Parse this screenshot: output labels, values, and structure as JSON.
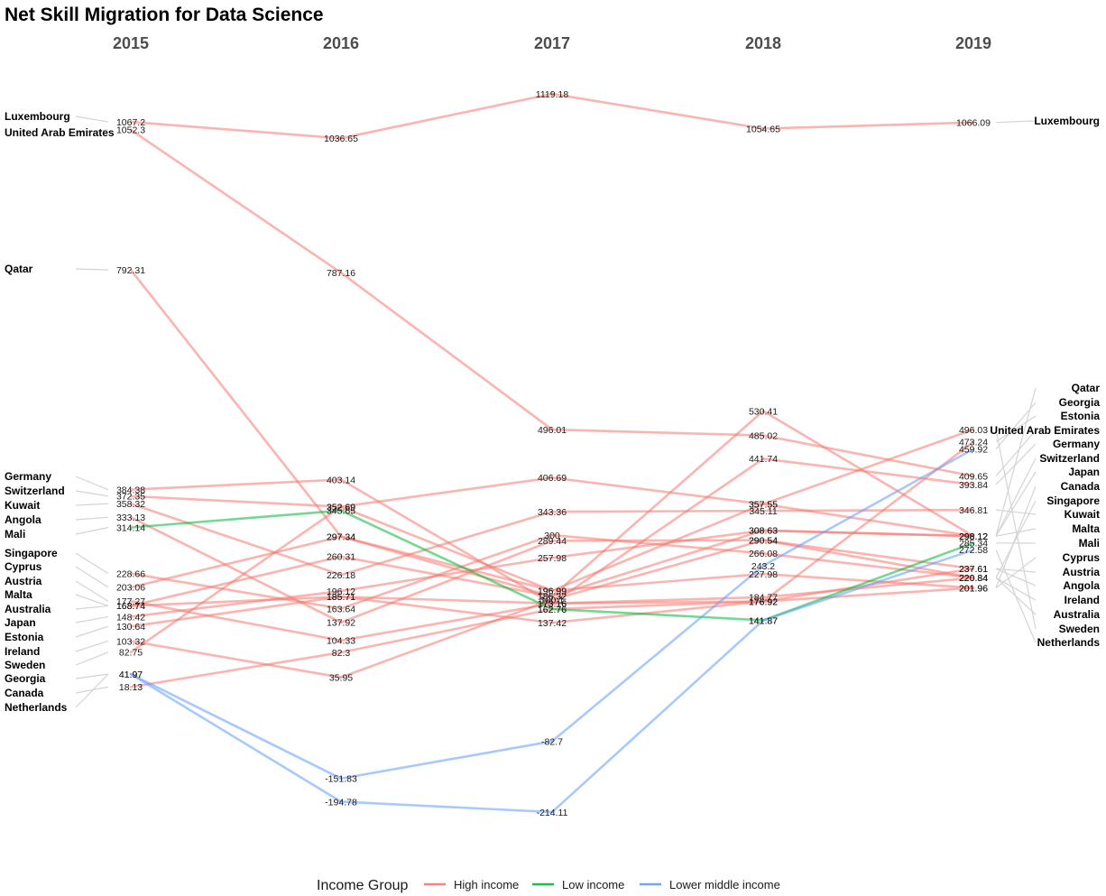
{
  "chart_data": {
    "type": "line",
    "title": "Net Skill Migration for Data Science",
    "x": [
      "2015",
      "2016",
      "2017",
      "2018",
      "2019"
    ],
    "ylim": [
      -245,
      1150
    ],
    "grid": false,
    "legend_position": "bottom",
    "legend": {
      "title": "Income Group",
      "entries": [
        {
          "name": "High income",
          "color": "#F8766D"
        },
        {
          "name": "Low income",
          "color": "#00BA38"
        },
        {
          "name": "Lower middle income",
          "color": "#619CFF"
        }
      ]
    },
    "series": [
      {
        "name": "Luxembourg",
        "group": "High income",
        "values": [
          1067.2,
          1036.65,
          1119.18,
          1054.65,
          1066.09
        ],
        "labels": [
          "1067.2",
          "1036.65",
          "1119.18",
          "1054.65",
          "1066.09"
        ]
      },
      {
        "name": "United Arab Emirates",
        "group": "High income",
        "values": [
          1052.3,
          787.16,
          496.01,
          485.02,
          409.65
        ],
        "labels": [
          "1052.3",
          "787.16",
          "496.01",
          "485.02",
          "409.65"
        ]
      },
      {
        "name": "Qatar",
        "group": "High income",
        "values": [
          792.31,
          297.34,
          186.32,
          530.41,
          298.12
        ],
        "labels": [
          "792.31",
          "297.34",
          "186.32",
          "530.41",
          "298.12"
        ]
      },
      {
        "name": "Germany",
        "group": "High income",
        "values": [
          384.38,
          403.14,
          173.16,
          441.74,
          393.84
        ],
        "labels": [
          "384.38",
          "403.14",
          "173.16",
          "441.74",
          "393.84"
        ]
      },
      {
        "name": "Switzerland",
        "group": "High income",
        "values": [
          372.35,
          352.69,
          406.69,
          357.55,
          298.12
        ],
        "labels": [
          "372.35",
          "352.69",
          "406.69",
          "357.55",
          "298.12"
        ]
      },
      {
        "name": "Kuwait",
        "group": "High income",
        "values": [
          358.32,
          226.18,
          343.36,
          345.11,
          346.81
        ],
        "labels": [
          "358.32",
          "226.18",
          "343.36",
          "345.11",
          "346.81"
        ]
      },
      {
        "name": "Angola",
        "group": "High income",
        "values": [
          333.13,
          137.92,
          289.44,
          290.54,
          237.61
        ],
        "labels": [
          "333.13",
          "137.92",
          "289.44",
          "290.54",
          "237.61"
        ]
      },
      {
        "name": "Mali",
        "group": "Low income",
        "values": [
          314.14,
          345.65,
          162.76,
          141.87,
          285.34
        ],
        "labels": [
          "314.14",
          "345.65",
          "162.76",
          "141.87",
          "285.34"
        ]
      },
      {
        "name": "Singapore",
        "group": "High income",
        "values": [
          228.66,
          163.64,
          300,
          266.08,
          220.84
        ],
        "labels": [
          "228.66",
          "163.64",
          "300",
          "266.08",
          "220.84"
        ]
      },
      {
        "name": "Cyprus",
        "group": "High income",
        "values": [
          203.06,
          297.34,
          196.99,
          227.98,
          201.96
        ],
        "labels": [
          "203.06",
          "297.34",
          "196.99",
          "227.98",
          "201.96"
        ]
      },
      {
        "name": "Austria",
        "group": "High income",
        "values": [
          177.27,
          104.33,
          173.16,
          176.92,
          237.61
        ],
        "labels": [
          "177.27",
          "104.33",
          "173.16",
          "176.92",
          "237.61"
        ]
      },
      {
        "name": "Malta",
        "group": "High income",
        "values": [
          168.74,
          260.31,
          186.32,
          308.63,
          298.12
        ],
        "labels": [
          "168.74",
          "260.31",
          "186.32",
          "308.63",
          "298.12"
        ]
      },
      {
        "name": "Australia",
        "group": "High income",
        "values": [
          168.74,
          185.71,
          173.16,
          184.77,
          220.84
        ],
        "labels": [
          "168.74",
          "185.71",
          "173.16",
          "184.77",
          "220.84"
        ]
      },
      {
        "name": "Japan",
        "group": "High income",
        "values": [
          148.42,
          196.12,
          257.98,
          308.63,
          298.12
        ],
        "labels": [
          "148.42",
          "196.12",
          "257.98",
          "308.63",
          "298.12"
        ]
      },
      {
        "name": "Estonia",
        "group": "High income",
        "values": [
          130.64,
          185.71,
          137.42,
          176.92,
          473.24
        ],
        "labels": [
          "130.64",
          "185.71",
          "137.42",
          "176.92",
          "473.24"
        ]
      },
      {
        "name": "Ireland",
        "group": "High income",
        "values": [
          103.32,
          35.95,
          180.1,
          290.54,
          220.84
        ],
        "labels": [
          "103.32",
          "35.95",
          "180.1",
          "290.54",
          "220.84"
        ]
      },
      {
        "name": "Sweden",
        "group": "High income",
        "values": [
          82.75,
          352.69,
          196.99,
          357.55,
          496.03
        ],
        "labels": [
          "82.75",
          "352.69",
          "196.99",
          "357.55",
          "496.03"
        ]
      },
      {
        "name": "Georgia",
        "group": "Lower middle income",
        "values": [
          41.97,
          -151.83,
          -82.7,
          243.2,
          459.92
        ],
        "labels": [
          "41.97",
          "-151.83",
          "-82.7",
          "243.2",
          "459.92"
        ]
      },
      {
        "name": "Canada",
        "group": "High income",
        "values": [
          18.13,
          82.3,
          162.76,
          176.92,
          201.96
        ],
        "labels": [
          "18.13",
          "82.3",
          "162.76",
          "176.92",
          "201.96"
        ]
      },
      {
        "name": "Netherlands",
        "group": "Lower middle income",
        "values": [
          41.97,
          -194.78,
          -214.11,
          141.87,
          272.58
        ],
        "labels": [
          "41.97",
          "-194.78",
          "-214.11",
          "141.87",
          "272.58"
        ]
      }
    ],
    "left_labels": [
      {
        "name": "Luxembourg",
        "value": 1067.2
      },
      {
        "name": "United Arab Emirates",
        "value": 1052.3
      },
      {
        "name": "Qatar",
        "value": 792.31
      },
      {
        "name": "Germany",
        "value": 384.38
      },
      {
        "name": "Switzerland",
        "value": 372.35
      },
      {
        "name": "Kuwait",
        "value": 358.32
      },
      {
        "name": "Angola",
        "value": 333.13
      },
      {
        "name": "Mali",
        "value": 314.14
      },
      {
        "name": "Singapore",
        "value": 228.66
      },
      {
        "name": "Cyprus",
        "value": 203.06
      },
      {
        "name": "Austria",
        "value": 177.27
      },
      {
        "name": "Malta",
        "value": 168.74
      },
      {
        "name": "Australia",
        "value": 168.74
      },
      {
        "name": "Japan",
        "value": 148.42
      },
      {
        "name": "Estonia",
        "value": 130.64
      },
      {
        "name": "Ireland",
        "value": 103.32
      },
      {
        "name": "Sweden",
        "value": 82.75
      },
      {
        "name": "Georgia",
        "value": 41.97
      },
      {
        "name": "Canada",
        "value": 18.13
      },
      {
        "name": "Netherlands",
        "value": 41.97
      }
    ],
    "right_labels": [
      {
        "name": "Luxembourg",
        "value": 1066.09
      },
      {
        "name": "Qatar",
        "value": 298.12
      },
      {
        "name": "Georgia",
        "value": 459.92
      },
      {
        "name": "Estonia",
        "value": 473.24
      },
      {
        "name": "United Arab Emirates",
        "value": 409.65
      },
      {
        "name": "Germany",
        "value": 393.84
      },
      {
        "name": "Switzerland",
        "value": 298.12
      },
      {
        "name": "Japan",
        "value": 298.12
      },
      {
        "name": "Canada",
        "value": 201.96
      },
      {
        "name": "Singapore",
        "value": 220.84
      },
      {
        "name": "Kuwait",
        "value": 346.81
      },
      {
        "name": "Malta",
        "value": 298.12
      },
      {
        "name": "Mali",
        "value": 285.34
      },
      {
        "name": "Cyprus",
        "value": 201.96
      },
      {
        "name": "Austria",
        "value": 237.61
      },
      {
        "name": "Angola",
        "value": 237.61
      },
      {
        "name": "Ireland",
        "value": 220.84
      },
      {
        "name": "Australia",
        "value": 220.84
      },
      {
        "name": "Sweden",
        "value": 496.03
      },
      {
        "name": "Netherlands",
        "value": 272.58
      }
    ]
  }
}
